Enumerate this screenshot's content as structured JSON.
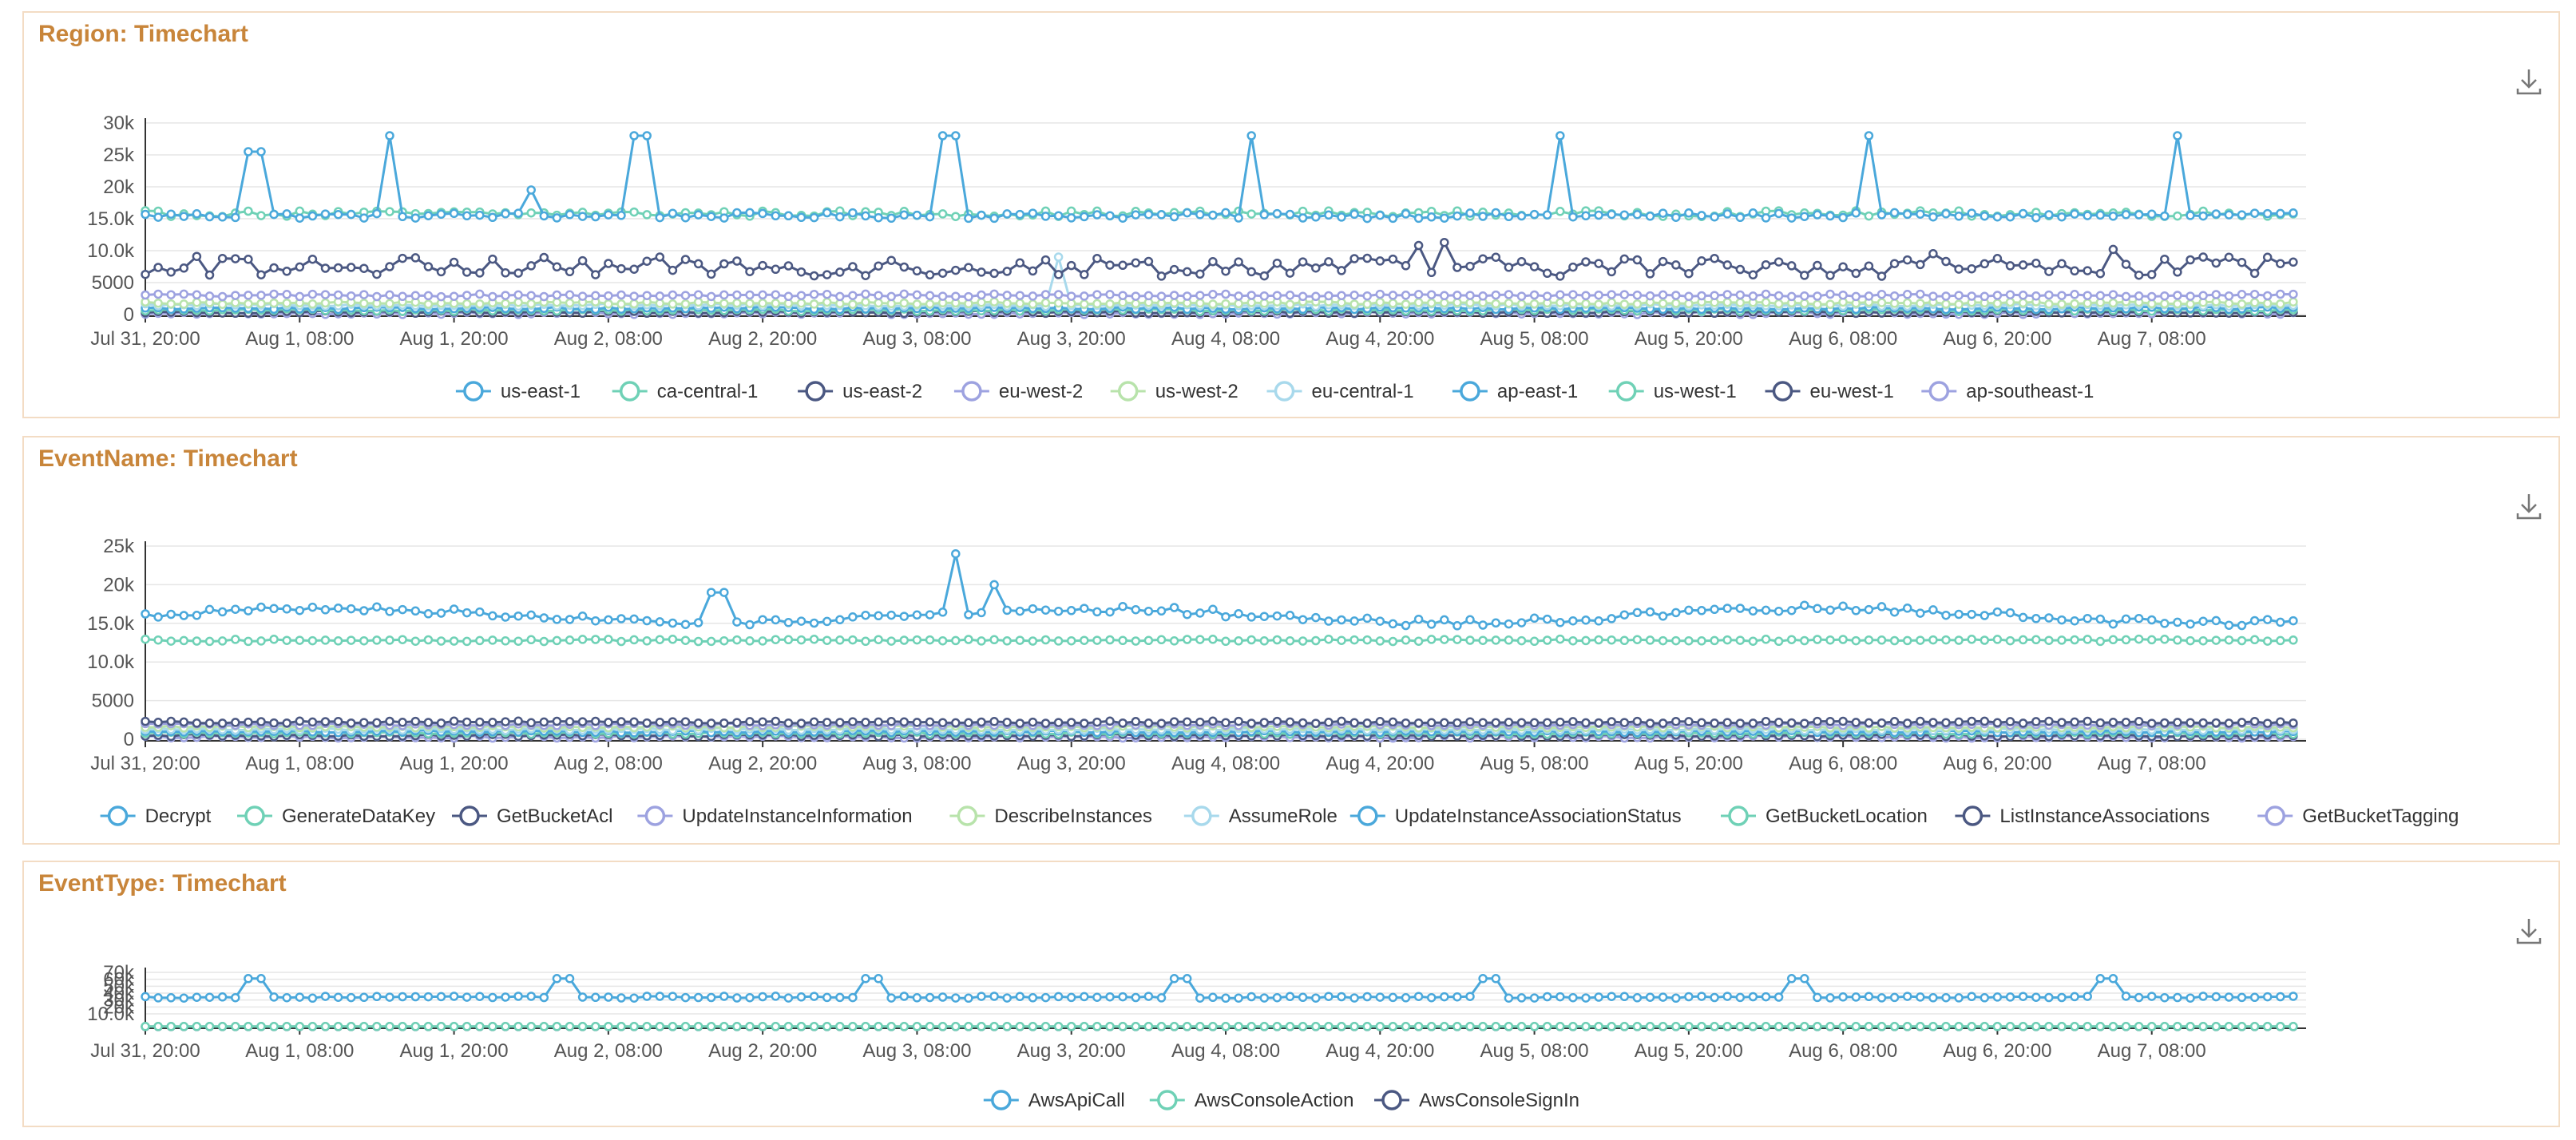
{
  "colors": [
    "#4aa8db",
    "#6fd1b6",
    "#4b5882",
    "#9da2e0",
    "#b8e3ab",
    "#a8d9ec",
    "#4aa8db",
    "#6fd1b6",
    "#4b5882",
    "#9da2e0"
  ],
  "x_ticks": [
    "Jul 31, 20:00",
    "Aug 1, 08:00",
    "Aug 1, 20:00",
    "Aug 2, 08:00",
    "Aug 2, 20:00",
    "Aug 3, 08:00",
    "Aug 3, 20:00",
    "Aug 4, 08:00",
    "Aug 4, 20:00",
    "Aug 5, 08:00",
    "Aug 5, 20:00",
    "Aug 6, 08:00",
    "Aug 6, 20:00",
    "Aug 7, 08:00"
  ],
  "panels": [
    {
      "title": "Region: Timechart",
      "y_ticks": [
        "0",
        "5000",
        "10.0k",
        "15.0k",
        "20k",
        "25k",
        "30k"
      ],
      "legend": [
        "us-east-1",
        "ca-central-1",
        "us-east-2",
        "eu-west-2",
        "us-west-2",
        "eu-central-1",
        "ap-east-1",
        "us-west-1",
        "eu-west-1",
        "ap-southeast-1"
      ]
    },
    {
      "title": "EventName: Timechart",
      "y_ticks": [
        "0",
        "5000",
        "10.0k",
        "15.0k",
        "20k",
        "25k"
      ],
      "legend": [
        "Decrypt",
        "GenerateDataKey",
        "GetBucketAcl",
        "UpdateInstanceInformation",
        "DescribeInstances",
        "AssumeRole",
        "UpdateInstanceAssociationStatus",
        "GetBucketLocation",
        "ListInstanceAssociations",
        "GetBucketTagging"
      ]
    },
    {
      "title": "EventType: Timechart",
      "y_ticks": [
        "10.0k",
        "20k",
        "30k",
        "40k",
        "50k",
        "60k",
        "70k"
      ],
      "legend": [
        "AwsApiCall",
        "AwsConsoleAction",
        "AwsConsoleSignIn"
      ]
    }
  ],
  "chart_data": [
    {
      "type": "line",
      "title": "Region: Timechart",
      "x_range": [
        "Jul 31, 20:00",
        "Aug 7, 20:00"
      ],
      "ylim": [
        0,
        30000
      ],
      "series": [
        {
          "name": "us-east-1",
          "baseline": 15500,
          "spike_value": 28000,
          "spikes_at_days": [
            0.8,
            1.6,
            2.6,
            3.6,
            4.6,
            5.6,
            6.6
          ]
        },
        {
          "name": "ca-central-1",
          "baseline": 15800
        },
        {
          "name": "us-east-2",
          "baseline": 7500
        },
        {
          "name": "eu-west-2",
          "baseline": 3000
        },
        {
          "name": "us-west-2",
          "baseline": 1800
        },
        {
          "name": "eu-central-1",
          "baseline": 1500
        },
        {
          "name": "ap-east-1",
          "baseline": 1000
        },
        {
          "name": "us-west-1",
          "baseline": 700
        },
        {
          "name": "eu-west-1",
          "baseline": 400
        },
        {
          "name": "ap-southeast-1",
          "baseline": 200
        }
      ]
    },
    {
      "type": "line",
      "title": "EventName: Timechart",
      "x_range": [
        "Jul 31, 20:00",
        "Aug 7, 20:00"
      ],
      "ylim": [
        0,
        25000
      ],
      "series": [
        {
          "name": "Decrypt",
          "baseline": 16000,
          "peak": 24000
        },
        {
          "name": "GenerateDataKey",
          "baseline": 12800
        },
        {
          "name": "GetBucketAcl",
          "baseline": 2200
        },
        {
          "name": "UpdateInstanceInformation",
          "baseline": 1900
        },
        {
          "name": "DescribeInstances",
          "baseline": 1600
        },
        {
          "name": "AssumeRole",
          "baseline": 1300
        },
        {
          "name": "UpdateInstanceAssociationStatus",
          "baseline": 1000
        },
        {
          "name": "GetBucketLocation",
          "baseline": 800
        },
        {
          "name": "ListInstanceAssociations",
          "baseline": 500
        },
        {
          "name": "GetBucketTagging",
          "baseline": 300
        }
      ]
    },
    {
      "type": "line",
      "title": "EventType: Timechart",
      "x_range": [
        "Jul 31, 20:00",
        "Aug 7, 20:00"
      ],
      "ylim": [
        0,
        70000
      ],
      "series": [
        {
          "name": "AwsApiCall",
          "baseline": 38000,
          "spike_value": 62000
        },
        {
          "name": "AwsConsoleAction",
          "baseline": 200
        },
        {
          "name": "AwsConsoleSignIn",
          "baseline": 100
        }
      ]
    }
  ]
}
